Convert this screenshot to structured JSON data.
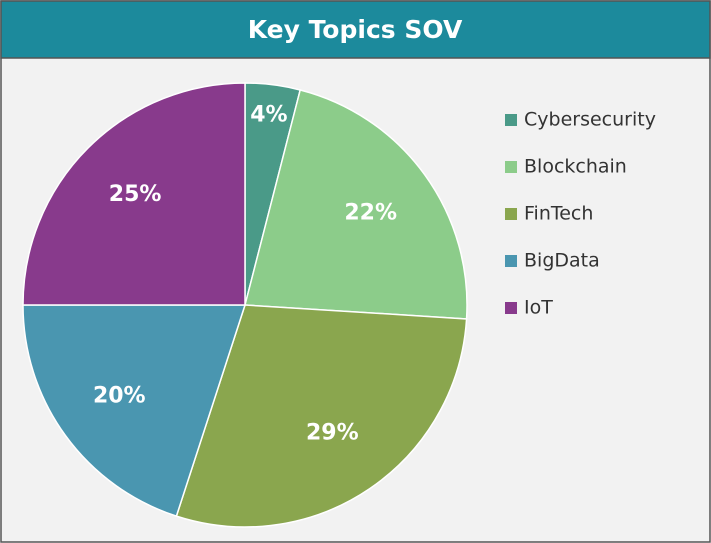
{
  "chart_data": {
    "type": "pie",
    "title": "Key Topics SOV",
    "categories": [
      "Cybersecurity",
      "Blockchain",
      "FinTech",
      "BigData",
      "IoT"
    ],
    "values": [
      4,
      22,
      29,
      20,
      25
    ],
    "value_labels": [
      "4%",
      "22%",
      "29%",
      "20%",
      "25%"
    ],
    "colors": [
      "#4a9a88",
      "#8ccc8a",
      "#8aa64e",
      "#4a96b0",
      "#883a8c"
    ],
    "legend": "right"
  }
}
